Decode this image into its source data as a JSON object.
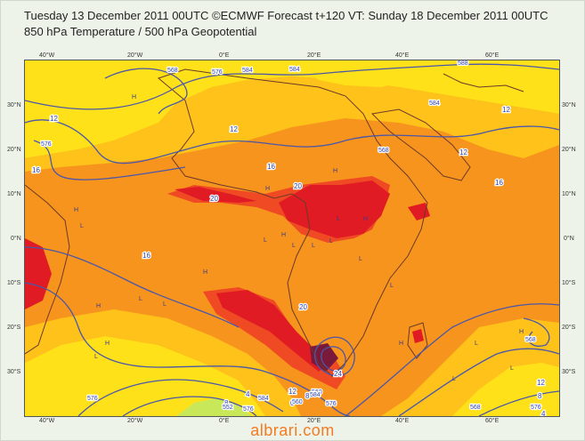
{
  "header": {
    "line1": "Tuesday 13 December 2011 00UTC ©ECMWF Forecast t+120 VT: Sunday 18 December 2011 00UTC",
    "line2": "850 hPa Temperature / 500 hPa Geopotential"
  },
  "axes": {
    "lon_ticks": [
      "40°W",
      "20°W",
      "0°E",
      "20°E",
      "40°E",
      "60°E"
    ],
    "lat_ticks": [
      "30°N",
      "20°N",
      "10°N",
      "0°N",
      "10°S",
      "20°S",
      "30°S"
    ]
  },
  "map": {
    "colors": {
      "cool": "#ffe11a",
      "mild": "#ffc21a",
      "warm": "#f7941d",
      "hot": "#ef4a23",
      "very_hot": "#e01b24",
      "max": "#7a1a3a",
      "cold": "#c8e85a",
      "geopotential_line": "#4b57a8",
      "coast": "#6a3a2a"
    },
    "temperature_labels": [
      "12",
      "12",
      "12",
      "12",
      "16",
      "16",
      "16",
      "16",
      "20",
      "20",
      "20",
      "24",
      "12",
      "8",
      "4",
      "8",
      "12",
      "8",
      "4",
      "0",
      "8"
    ],
    "geopotential_labels": [
      "568",
      "576",
      "584",
      "584",
      "588",
      "584",
      "568",
      "576",
      "568",
      "576",
      "560",
      "552",
      "584",
      "576",
      "560",
      "576",
      "584",
      "576",
      "568"
    ],
    "pressure_centers": [
      "H",
      "H",
      "H",
      "H",
      "L",
      "L",
      "L",
      "H",
      "L",
      "L",
      "H",
      "L",
      "H",
      "L",
      "L",
      "H",
      "L",
      "H",
      "L",
      "H",
      "L",
      "L",
      "L",
      "H",
      "L"
    ]
  },
  "watermark": "albrari.com"
}
